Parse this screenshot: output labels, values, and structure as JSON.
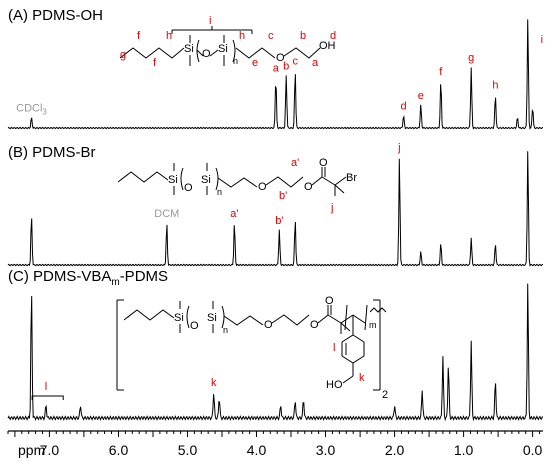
{
  "chart_data": {
    "type": "line",
    "title": "",
    "xlabel": "ppm",
    "xlim": [
      7.6,
      -0.15
    ],
    "x_reversed": true,
    "xticks": [
      7.0,
      6.0,
      5.0,
      4.0,
      3.0,
      2.0,
      1.0,
      0.0
    ],
    "xtick_labels": [
      "7.0",
      "6.0",
      "5.0",
      "4.0",
      "3.0",
      "2.0",
      "1.0",
      "0.0"
    ],
    "series": [
      {
        "name": "PDMS-OH",
        "panel_label": "(A) PDMS-OH",
        "peaks": [
          {
            "ppm": 7.26,
            "height": 0.1,
            "label": "CDCl3",
            "label_style": "solvent"
          },
          {
            "ppm": 3.72,
            "height": 0.48,
            "label": "a"
          },
          {
            "ppm": 3.57,
            "height": 0.5,
            "label": "b"
          },
          {
            "ppm": 3.44,
            "height": 0.55,
            "label": "c"
          },
          {
            "ppm": 1.87,
            "height": 0.12,
            "label": "d"
          },
          {
            "ppm": 1.62,
            "height": 0.22,
            "label": "e"
          },
          {
            "ppm": 1.33,
            "height": 0.45,
            "label": "f"
          },
          {
            "ppm": 0.89,
            "height": 0.58,
            "label": "g"
          },
          {
            "ppm": 0.54,
            "height": 0.32,
            "label": "h"
          },
          {
            "ppm": 0.07,
            "height": 1.05,
            "label": "i"
          },
          {
            "ppm": 0.0,
            "height": 0.2,
            "label": ""
          },
          {
            "ppm": 0.22,
            "height": 0.1,
            "label": ""
          }
        ]
      },
      {
        "name": "PDMS-Br",
        "panel_label": "(B) PDMS-Br",
        "peaks": [
          {
            "ppm": 7.26,
            "height": 0.45,
            "label": ""
          },
          {
            "ppm": 5.3,
            "height": 0.38,
            "label": "DCM",
            "label_style": "solvent"
          },
          {
            "ppm": 4.32,
            "height": 0.38,
            "label": "a'"
          },
          {
            "ppm": 3.67,
            "height": 0.32,
            "label": "b'"
          },
          {
            "ppm": 3.44,
            "height": 0.42,
            "label": ""
          },
          {
            "ppm": 1.93,
            "height": 0.98,
            "label": "j"
          },
          {
            "ppm": 1.62,
            "height": 0.12,
            "label": ""
          },
          {
            "ppm": 1.33,
            "height": 0.2,
            "label": ""
          },
          {
            "ppm": 0.89,
            "height": 0.25,
            "label": ""
          },
          {
            "ppm": 0.54,
            "height": 0.2,
            "label": ""
          },
          {
            "ppm": 0.07,
            "height": 1.05,
            "label": ""
          }
        ]
      },
      {
        "name": "PDMS-VBAm-PDMS",
        "panel_label_main": "(C) PDMS-VBA",
        "panel_label_sub": "m",
        "panel_label_tail": "-PDMS",
        "peaks": [
          {
            "ppm": 7.26,
            "height": 1.0,
            "label": ""
          },
          {
            "ppm": 7.05,
            "height": 0.1,
            "label": "l",
            "bracket": [
              7.25,
              6.8
            ]
          },
          {
            "ppm": 6.55,
            "height": 0.1,
            "label": ""
          },
          {
            "ppm": 4.62,
            "height": 0.2,
            "label": "k"
          },
          {
            "ppm": 4.54,
            "height": 0.16,
            "label": ""
          },
          {
            "ppm": 3.65,
            "height": 0.1,
            "label": ""
          },
          {
            "ppm": 3.44,
            "height": 0.14,
            "label": ""
          },
          {
            "ppm": 3.32,
            "height": 0.15,
            "label": ""
          },
          {
            "ppm": 2.0,
            "height": 0.1,
            "label": ""
          },
          {
            "ppm": 1.6,
            "height": 0.22,
            "label": ""
          },
          {
            "ppm": 1.3,
            "height": 0.48,
            "label": ""
          },
          {
            "ppm": 1.22,
            "height": 0.42,
            "label": ""
          },
          {
            "ppm": 0.89,
            "height": 0.6,
            "label": ""
          },
          {
            "ppm": 0.54,
            "height": 0.3,
            "label": ""
          },
          {
            "ppm": 0.07,
            "height": 1.05,
            "label": ""
          }
        ]
      }
    ],
    "grid": false,
    "legend": "none"
  },
  "structures": {
    "A": {
      "si1": "Si",
      "o": "O",
      "si2": "Si",
      "n": "n",
      "oh": "OH",
      "o_chain": "O",
      "labels": [
        "g",
        "f",
        "f",
        "h",
        "i",
        "h",
        "e",
        "c",
        "b",
        "a",
        "d"
      ]
    },
    "B": {
      "si1": "Si",
      "o": "O",
      "si2": "Si",
      "n": "n",
      "o1": "O",
      "o2": "O",
      "o3": "O",
      "br": "Br",
      "labels": [
        "a'",
        "b'",
        "j"
      ]
    },
    "C": {
      "si1": "Si",
      "o": "O",
      "si2": "Si",
      "n": "n",
      "o1": "O",
      "o2": "O",
      "o3": "O",
      "m": "m",
      "two": "2",
      "ho": "HO",
      "labels": [
        "l",
        "k"
      ]
    }
  }
}
